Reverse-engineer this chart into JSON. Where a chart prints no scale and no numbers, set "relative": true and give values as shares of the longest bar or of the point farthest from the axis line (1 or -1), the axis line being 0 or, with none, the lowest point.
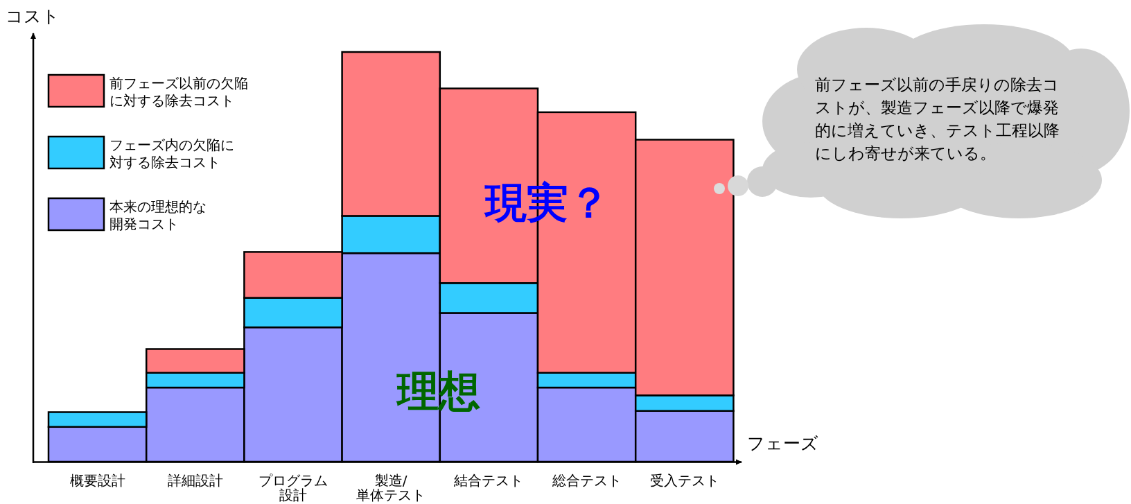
{
  "chart_data": {
    "type": "bar",
    "stacked": true,
    "relative": true,
    "xlabel": "フェーズ",
    "ylabel": "コスト",
    "legend": "top left",
    "categories": [
      "概要設計",
      "詳細設計",
      "プログラム設計",
      "製造/単体テスト",
      "結合テスト",
      "総合テスト",
      "受入テスト"
    ],
    "series": [
      {
        "name": "本来の理想的な開発コスト",
        "color": "#9999ff",
        "values": [
          0.085,
          0.181,
          0.328,
          0.509,
          0.363,
          0.181,
          0.124
        ]
      },
      {
        "name": "フェーズ内の欠陥に対する除去コスト",
        "color": "#33ccff",
        "values": [
          0.036,
          0.036,
          0.072,
          0.091,
          0.073,
          0.036,
          0.038
        ]
      },
      {
        "name": "前フェーズ以前の欠陥に対する除去コスト",
        "color": "#ff7c80",
        "values": [
          0,
          0.058,
          0.112,
          0.4,
          0.475,
          0.636,
          0.624
        ]
      }
    ],
    "annotations": [
      "現実？",
      "理想",
      "前フェーズ以前の手戻りの除去コストが、製造フェーズ以降で爆発的に増えていき、テスト工程以降にしわ寄せが来ている。"
    ]
  }
}
